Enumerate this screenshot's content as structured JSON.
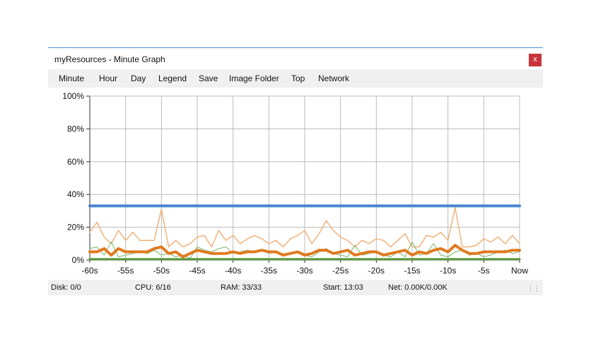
{
  "window": {
    "title": "myResources - Minute Graph",
    "close_label": "x"
  },
  "menu": [
    "Minute",
    "Hour",
    "Day",
    "Legend",
    "Save",
    "Image Folder",
    "Top",
    "Network"
  ],
  "status": {
    "disk": "Disk: 0/0",
    "cpu": "CPU: 6/16",
    "ram": "RAM: 33/33",
    "start": "Start: 13:03",
    "net": "Net: 0.00K/0.00K"
  },
  "colors": {
    "ram": "#4a86d0",
    "cpu_max": "#f2b27a",
    "cpu": "#e07a1f",
    "disk": "#8bbf7a",
    "net": "#5c9a3c",
    "grid": "#bbbbbb"
  },
  "chart_data": {
    "type": "line",
    "ylim": [
      0,
      100
    ],
    "y_ticks": [
      "0%",
      "20%",
      "40%",
      "60%",
      "80%",
      "100%"
    ],
    "x_ticks": [
      "-60s",
      "-55s",
      "-50s",
      "-45s",
      "-40s",
      "-35s",
      "-30s",
      "-25s",
      "-20s",
      "-15s",
      "-10s",
      "-5s",
      "Now"
    ],
    "xlim": [
      -60,
      0
    ],
    "grid": true,
    "series": [
      {
        "key": "ram",
        "color": "#4a86d0",
        "width": 4,
        "values": [
          33,
          33,
          33,
          33,
          33,
          33,
          33,
          33,
          33,
          33,
          33,
          33,
          33,
          33,
          33,
          33,
          33,
          33,
          33,
          33,
          33,
          33,
          33,
          33,
          33,
          33,
          33,
          33,
          33,
          33,
          33,
          33,
          33,
          33,
          33,
          33,
          33,
          33,
          33,
          33,
          33,
          33,
          33,
          33,
          33,
          33,
          33,
          33,
          33,
          33,
          33,
          33,
          33,
          33,
          33,
          33,
          33,
          33,
          33,
          33,
          33
        ]
      },
      {
        "key": "cpu_max",
        "color": "#f2b27a",
        "width": 1.5,
        "values": [
          17,
          23,
          14,
          10,
          18,
          12,
          17,
          12,
          12,
          12,
          31,
          8,
          12,
          8,
          10,
          14,
          15,
          8,
          18,
          12,
          15,
          10,
          13,
          15,
          13,
          10,
          12,
          8,
          13,
          15,
          18,
          10,
          16,
          24,
          18,
          14,
          12,
          8,
          12,
          10,
          13,
          12,
          8,
          12,
          16,
          8,
          8,
          15,
          14,
          17,
          12,
          32,
          8,
          8,
          9,
          13,
          11,
          14,
          10,
          15,
          10
        ]
      },
      {
        "key": "disk",
        "color": "#8bbf7a",
        "width": 1.2,
        "values": [
          7,
          8,
          3,
          11,
          2,
          3,
          4,
          5,
          4,
          6,
          3,
          4,
          2,
          3,
          1,
          8,
          6,
          5,
          7,
          8,
          4,
          5,
          6,
          5,
          6,
          4,
          5,
          3,
          4,
          5,
          3,
          2,
          5,
          7,
          4,
          3,
          2,
          9,
          3,
          4,
          5,
          3,
          2,
          5,
          2,
          11,
          3,
          4,
          10,
          3,
          2,
          5,
          6,
          3,
          4,
          2,
          3,
          5,
          6,
          4,
          5
        ]
      },
      {
        "key": "cpu",
        "color": "#e07a1f",
        "width": 4,
        "values": [
          5,
          5,
          7,
          3,
          7,
          5,
          5,
          5,
          5,
          7,
          8,
          4,
          5,
          2,
          4,
          6,
          5,
          4,
          4,
          4,
          5,
          4,
          5,
          5,
          6,
          5,
          5,
          3,
          4,
          5,
          3,
          4,
          6,
          6,
          4,
          5,
          6,
          3,
          4,
          5,
          5,
          3,
          4,
          5,
          6,
          3,
          5,
          4,
          6,
          7,
          5,
          9,
          6,
          4,
          4,
          5,
          5,
          5,
          5,
          6,
          6
        ]
      },
      {
        "key": "net",
        "color": "#5c9a3c",
        "width": 3,
        "values": [
          0.5,
          0.5,
          0.5,
          0.5,
          0.5,
          0.5,
          0.5,
          0.5,
          0.5,
          0.5,
          0.5,
          0.5,
          0.5,
          0.5,
          0.5,
          0.5,
          0.5,
          0.5,
          0.5,
          0.5,
          0.5,
          0.5,
          0.5,
          0.5,
          0.5,
          0.5,
          0.5,
          0.5,
          0.5,
          0.5,
          0.5,
          0.5,
          0.5,
          0.5,
          0.5,
          0.5,
          0.5,
          0.5,
          0.5,
          0.5,
          0.5,
          0.5,
          0.5,
          0.5,
          0.5,
          0.5,
          0.5,
          0.5,
          0.5,
          0.5,
          0.5,
          0.5,
          0.5,
          0.5,
          0.5,
          0.5,
          0.5,
          0.5,
          0.5,
          0.5,
          0.5
        ]
      }
    ]
  }
}
